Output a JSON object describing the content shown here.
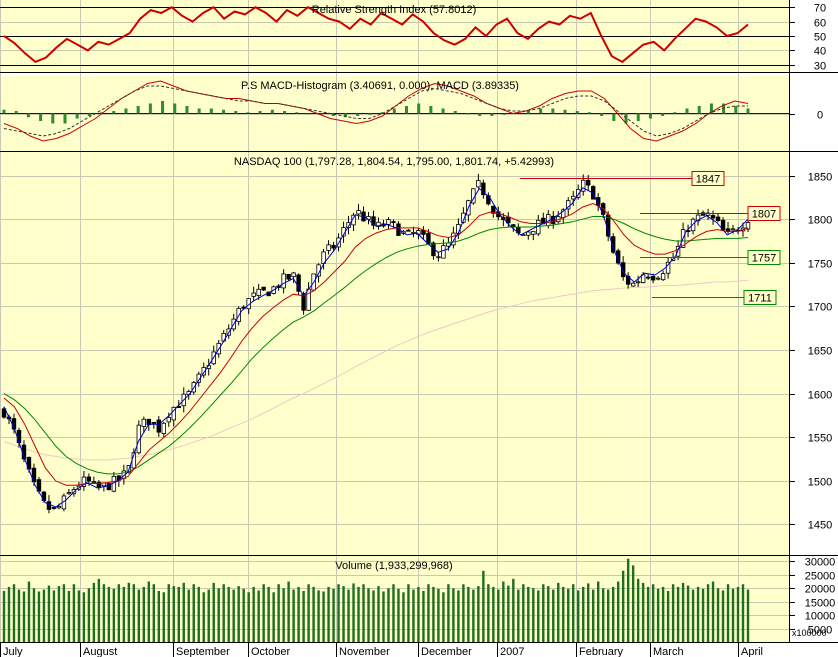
{
  "colors": {
    "panel_bg": "#ffffcc",
    "grid": "#c8c8b4",
    "rsi": "#cc0000",
    "hist": "#2e8b2e",
    "macd": "#cc0000",
    "signal": "#333333",
    "ma_fast": "#0000cc",
    "ma_mid": "#cc0000",
    "ma_slow": "#008800",
    "ma_long": "#f0c8c8",
    "volume": "#1e6e1e",
    "level_red": "#cc0000",
    "level_green": "#008800"
  },
  "chart_data": [
    {
      "type": "line",
      "title": "Relative Strength Index (57.8012)",
      "ylim": [
        25,
        75
      ],
      "yticks": [
        70,
        60,
        50,
        40,
        30
      ],
      "hlines": [
        70,
        50,
        30
      ],
      "series": [
        {
          "values": [
            50,
            45,
            38,
            32,
            35,
            42,
            48,
            44,
            40,
            46,
            44,
            48,
            52,
            62,
            68,
            66,
            70,
            64,
            60,
            66,
            70,
            62,
            67,
            65,
            70,
            66,
            60,
            68,
            64,
            70,
            66,
            62,
            60,
            55,
            62,
            58,
            66,
            62,
            58,
            65,
            60,
            52,
            47,
            44,
            48,
            56,
            50,
            58,
            62,
            52,
            48,
            55,
            60,
            58,
            64,
            62,
            66,
            50,
            36,
            32,
            38,
            44,
            46,
            40,
            48,
            55,
            62,
            60,
            56,
            50,
            52,
            58
          ]
        }
      ]
    },
    {
      "type": "bar",
      "title": "P.S MACD-Histogram (3.40691, 0.000), MACD (3.89335)",
      "ylim": [
        -15,
        15
      ],
      "yticks": [
        0
      ],
      "series": [
        {
          "values": [
            1.5,
            1,
            -1.5,
            -3,
            -4,
            -4,
            -2,
            -1,
            0.5,
            1,
            2,
            3,
            4,
            5,
            4,
            3,
            2,
            2,
            1.5,
            1,
            0.5,
            1,
            1.5,
            1,
            0.5,
            0,
            -0.5,
            -1,
            -1.5,
            -1,
            -0.5,
            0.5,
            2,
            3,
            4,
            3,
            2,
            1,
            0,
            -1,
            -1,
            -0.5,
            0.5,
            1,
            2,
            2,
            1.5,
            1,
            0.5,
            -1,
            -3,
            -4,
            -3,
            -2,
            -1,
            0.5,
            2,
            3,
            4,
            4,
            3,
            2
          ]
        },
        {
          "values": [
            -4,
            -6,
            -9,
            -11,
            -10,
            -8,
            -5,
            -2,
            2,
            6,
            9,
            12,
            13,
            11,
            9,
            8,
            7,
            6,
            6,
            5,
            4,
            4,
            3,
            2,
            0,
            -2,
            -3,
            -4,
            -3,
            -1,
            3,
            7,
            10,
            12,
            11,
            9,
            7,
            4,
            2,
            0,
            1,
            3,
            6,
            8,
            9,
            9,
            6,
            0,
            -6,
            -10,
            -11,
            -9,
            -7,
            -4,
            0,
            3,
            5,
            4
          ]
        },
        {
          "values": [
            -6,
            -7,
            -8,
            -9,
            -8,
            -6,
            -3,
            0,
            3,
            6,
            9,
            11,
            11,
            10,
            9,
            8,
            7,
            6,
            5,
            5,
            4,
            4,
            3,
            2,
            1,
            0,
            -1,
            -2,
            -2,
            0,
            3,
            6,
            9,
            10,
            9,
            8,
            6,
            4,
            2,
            1,
            1,
            2,
            4,
            6,
            7,
            7,
            5,
            1,
            -3,
            -7,
            -9,
            -8,
            -6,
            -3,
            0,
            2,
            3,
            3
          ]
        }
      ]
    },
    {
      "type": "candlestick",
      "title": "NASDAQ 100 (1,797.28, 1,804.54, 1,795.00, 1,801.74, +5.42993)",
      "ylim": [
        1415,
        1877
      ],
      "yticks": [
        1850,
        1800,
        1750,
        1700,
        1650,
        1600,
        1550,
        1500,
        1450
      ],
      "close": [
        1580,
        1555,
        1520,
        1490,
        1470,
        1465,
        1480,
        1495,
        1500,
        1490,
        1495,
        1500,
        1510,
        1560,
        1570,
        1560,
        1580,
        1590,
        1600,
        1620,
        1640,
        1660,
        1680,
        1700,
        1710,
        1715,
        1720,
        1730,
        1735,
        1700,
        1740,
        1760,
        1770,
        1790,
        1810,
        1800,
        1790,
        1795,
        1790,
        1780,
        1785,
        1770,
        1760,
        1770,
        1790,
        1820,
        1840,
        1820,
        1800,
        1790,
        1780,
        1790,
        1795,
        1800,
        1810,
        1820,
        1840,
        1830,
        1800,
        1760,
        1730,
        1725,
        1740,
        1735,
        1745,
        1760,
        1790,
        1800,
        1805,
        1795,
        1780,
        1790,
        1802
      ],
      "ma_fast": [
        1585,
        1560,
        1525,
        1495,
        1475,
        1470,
        1478,
        1490,
        1498,
        1492,
        1494,
        1500,
        1510,
        1545,
        1565,
        1565,
        1575,
        1588,
        1600,
        1618,
        1636,
        1655,
        1675,
        1695,
        1705,
        1712,
        1718,
        1726,
        1732,
        1712,
        1728,
        1750,
        1765,
        1785,
        1805,
        1802,
        1792,
        1794,
        1790,
        1782,
        1784,
        1772,
        1762,
        1766,
        1785,
        1815,
        1835,
        1825,
        1805,
        1792,
        1782,
        1788,
        1794,
        1800,
        1808,
        1818,
        1836,
        1830,
        1805,
        1765,
        1738,
        1728,
        1738,
        1736,
        1744,
        1758,
        1786,
        1798,
        1804,
        1796,
        1782,
        1788,
        1800
      ],
      "ma_mid": [
        1595,
        1585,
        1565,
        1540,
        1515,
        1500,
        1495,
        1495,
        1497,
        1497,
        1498,
        1500,
        1505,
        1520,
        1535,
        1545,
        1555,
        1567,
        1580,
        1595,
        1610,
        1625,
        1642,
        1660,
        1675,
        1688,
        1698,
        1707,
        1714,
        1712,
        1718,
        1728,
        1740,
        1752,
        1768,
        1778,
        1784,
        1788,
        1790,
        1790,
        1790,
        1786,
        1781,
        1779,
        1782,
        1792,
        1804,
        1808,
        1806,
        1802,
        1797,
        1795,
        1795,
        1797,
        1801,
        1806,
        1814,
        1818,
        1812,
        1798,
        1782,
        1770,
        1764,
        1760,
        1760,
        1764,
        1772,
        1780,
        1786,
        1788,
        1786,
        1786,
        1790
      ],
      "ma_slow": [
        1600,
        1593,
        1583,
        1570,
        1555,
        1540,
        1528,
        1520,
        1514,
        1510,
        1508,
        1508,
        1510,
        1516,
        1524,
        1532,
        1540,
        1550,
        1561,
        1573,
        1586,
        1599,
        1612,
        1626,
        1640,
        1652,
        1663,
        1673,
        1682,
        1688,
        1695,
        1704,
        1713,
        1722,
        1732,
        1741,
        1749,
        1756,
        1762,
        1766,
        1769,
        1771,
        1772,
        1773,
        1775,
        1779,
        1784,
        1788,
        1790,
        1791,
        1791,
        1791,
        1792,
        1793,
        1795,
        1797,
        1800,
        1803,
        1803,
        1800,
        1795,
        1789,
        1784,
        1780,
        1777,
        1775,
        1775,
        1776,
        1777,
        1778,
        1778,
        1778,
        1779
      ],
      "ma_long": [
        1545,
        1541,
        1537,
        1533,
        1530,
        1528,
        1526,
        1525,
        1524,
        1524,
        1524,
        1525,
        1526,
        1528,
        1530,
        1533,
        1536,
        1539,
        1543,
        1547,
        1551,
        1556,
        1561,
        1566,
        1571,
        1577,
        1583,
        1589,
        1595,
        1600,
        1606,
        1612,
        1618,
        1624,
        1631,
        1637,
        1643,
        1649,
        1655,
        1660,
        1665,
        1670,
        1674,
        1678,
        1682,
        1686,
        1690,
        1694,
        1697,
        1700,
        1703,
        1706,
        1708,
        1710,
        1712,
        1714,
        1716,
        1718,
        1719,
        1720,
        1721,
        1722,
        1722,
        1723,
        1724,
        1724,
        1725,
        1726,
        1727,
        1728,
        1728,
        1729,
        1730
      ],
      "levels": [
        {
          "label": "1847",
          "value": 1847,
          "color": "red"
        },
        {
          "label": "1807",
          "value": 1807,
          "color": "red"
        },
        {
          "label": "1757",
          "value": 1757,
          "color": "green"
        },
        {
          "label": "1711",
          "value": 1711,
          "color": "green"
        }
      ]
    },
    {
      "type": "bar",
      "title": "Volume (1,933,299,968)",
      "ylim": [
        0,
        32000
      ],
      "yticks": [
        30000,
        25000,
        20000,
        15000,
        10000,
        5000
      ],
      "ytick_labels": [
        "30000",
        "25000",
        "20000",
        "15000",
        "10000",
        "5000"
      ],
      "unit_label": "x100000",
      "values": [
        19000,
        20500,
        21500,
        19500,
        18800,
        22500,
        20000,
        18800,
        19500,
        21000,
        19200,
        20800,
        21500,
        19000,
        21500,
        19200,
        18500,
        20000,
        22000,
        23500,
        21500,
        20500,
        19800,
        21500,
        20500,
        22000,
        21500,
        19500,
        20500,
        22500,
        21500,
        19000,
        18500,
        21500,
        20800,
        20500,
        22000,
        19500,
        21500,
        20500,
        18500,
        19500,
        22000,
        20000,
        21500,
        20500,
        19500,
        20800,
        19800,
        18500,
        20500,
        19200,
        21500,
        20500,
        18500,
        21500,
        20000,
        22500,
        19500,
        20500,
        19000,
        21500,
        20500,
        19200,
        18800,
        20500,
        19800,
        21500,
        20800,
        19500,
        21800,
        20500,
        21500,
        20000,
        19200,
        20800,
        18800,
        20000,
        21500,
        19800,
        18500,
        21500,
        19500,
        20500,
        19000,
        21500,
        20500,
        19800,
        18500,
        21500,
        20000,
        19200,
        21500,
        20500,
        19500,
        20800,
        26500,
        21500,
        20500,
        19500,
        22500,
        21000,
        23500,
        19500,
        21500,
        20500,
        20000,
        19200,
        21500,
        20800,
        19500,
        22000,
        20500,
        19800,
        21500,
        19200,
        20500,
        21800,
        19500,
        22500,
        20000,
        19500,
        20500,
        22500,
        26500,
        31000,
        28500,
        23500,
        22000,
        20500,
        21500,
        19800,
        20500,
        19000,
        21500,
        20500,
        22000,
        21000,
        19500,
        20500,
        19800,
        21500,
        22500,
        20000,
        19200,
        21500,
        19800,
        20500,
        21500,
        19500
      ]
    }
  ],
  "xaxis": {
    "months": [
      {
        "label": "July"
      },
      {
        "label": "August"
      },
      {
        "label": "September"
      },
      {
        "label": "October"
      },
      {
        "label": "November"
      },
      {
        "label": "December"
      },
      {
        "label": "2007"
      },
      {
        "label": "February"
      },
      {
        "label": "March"
      },
      {
        "label": "April"
      }
    ]
  }
}
